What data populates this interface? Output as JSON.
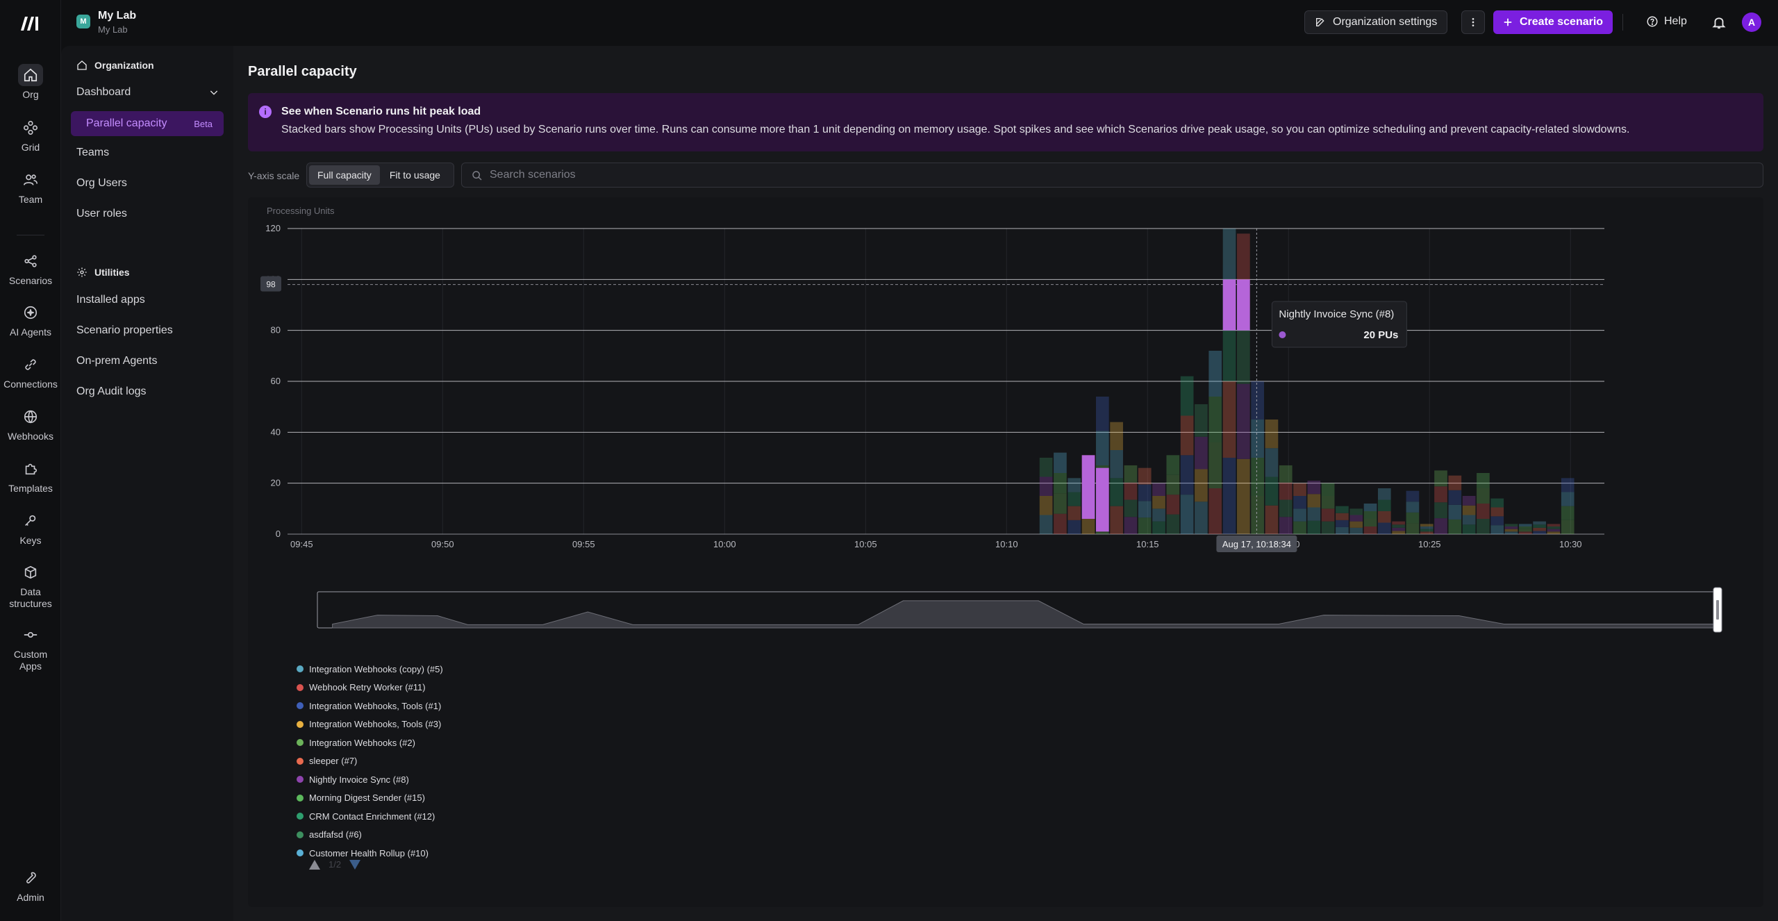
{
  "org": {
    "badge": "M",
    "name": "My Lab",
    "sub": "My Lab"
  },
  "rail": [
    {
      "label": "Org",
      "icon": "home-icon"
    },
    {
      "label": "Grid",
      "icon": "grid-icon"
    },
    {
      "label": "Team",
      "icon": "team-icon"
    },
    {
      "label": "Scenarios",
      "icon": "share-icon"
    },
    {
      "label": "AI Agents",
      "icon": "ai-agent-icon"
    },
    {
      "label": "Connections",
      "icon": "link-icon"
    },
    {
      "label": "Webhooks",
      "icon": "globe-icon"
    },
    {
      "label": "Templates",
      "icon": "puzzle-icon"
    },
    {
      "label": "Keys",
      "icon": "key-icon"
    },
    {
      "label": "Data structures",
      "icon": "cube-icon"
    },
    {
      "label": "Custom Apps",
      "icon": "commit-icon"
    },
    {
      "label": "Admin",
      "icon": "wrench-icon"
    }
  ],
  "topbar": {
    "org_settings": "Organization settings",
    "create": "Create scenario",
    "help": "Help",
    "avatar": "A"
  },
  "sidebar": {
    "organization": "Organization",
    "dashboard": "Dashboard",
    "active_item": "Parallel capacity",
    "active_badge": "Beta",
    "items": [
      "Teams",
      "Org Users",
      "User roles"
    ],
    "utilities": "Utilities",
    "util_items": [
      "Installed apps",
      "Scenario properties",
      "On-prem Agents",
      "Org Audit logs"
    ]
  },
  "main": {
    "title": "Parallel capacity",
    "banner_title": "See when Scenario runs hit peak load",
    "banner_body": "Stacked bars show Processing Units (PUs) used by Scenario runs over time. Runs can consume more than 1 unit depending on memory usage. Spot spikes and see which Scenarios drive peak usage, so you can optimize scheduling and prevent capacity-related slowdowns.",
    "yscale_label": "Y-axis scale",
    "yscale_options": [
      "Full capacity",
      "Fit to usage"
    ],
    "search_placeholder": "Search scenarios"
  },
  "chart_data": {
    "type": "bar",
    "stacked": true,
    "ylabel": "Processing Units",
    "ylim": [
      0,
      120
    ],
    "yticks": [
      0,
      20,
      40,
      60,
      80,
      100,
      120
    ],
    "xticks": [
      "09:45",
      "09:50",
      "09:55",
      "10:00",
      "10:05",
      "10:10",
      "10:15",
      "10:20",
      "10:25",
      "10:30"
    ],
    "capacity_marker": 98,
    "bars": [
      {
        "x": 26.4,
        "v": 30
      },
      {
        "x": 26.9,
        "v": 32
      },
      {
        "x": 27.4,
        "v": 22
      },
      {
        "x": 27.9,
        "v": 31,
        "hl": [
          6,
          31
        ]
      },
      {
        "x": 28.4,
        "v": 54,
        "hl": [
          1,
          26
        ]
      },
      {
        "x": 28.9,
        "v": 44
      },
      {
        "x": 29.4,
        "v": 27
      },
      {
        "x": 29.9,
        "v": 26
      },
      {
        "x": 30.4,
        "v": 20
      },
      {
        "x": 30.9,
        "v": 31
      },
      {
        "x": 31.4,
        "v": 62
      },
      {
        "x": 31.9,
        "v": 51
      },
      {
        "x": 32.4,
        "v": 72
      },
      {
        "x": 32.9,
        "v": 120,
        "hl": [
          80,
          100
        ]
      },
      {
        "x": 33.4,
        "v": 118,
        "hl": [
          80,
          100
        ]
      },
      {
        "x": 33.9,
        "v": 60
      },
      {
        "x": 34.4,
        "v": 45
      },
      {
        "x": 34.9,
        "v": 27
      },
      {
        "x": 35.4,
        "v": 20
      },
      {
        "x": 35.9,
        "v": 21
      },
      {
        "x": 36.4,
        "v": 20
      },
      {
        "x": 36.9,
        "v": 11
      },
      {
        "x": 37.4,
        "v": 10
      },
      {
        "x": 37.9,
        "v": 12
      },
      {
        "x": 38.4,
        "v": 18
      },
      {
        "x": 38.9,
        "v": 5
      },
      {
        "x": 39.4,
        "v": 17
      },
      {
        "x": 39.9,
        "v": 4
      },
      {
        "x": 40.4,
        "v": 25
      },
      {
        "x": 40.9,
        "v": 23
      },
      {
        "x": 41.4,
        "v": 15
      },
      {
        "x": 41.9,
        "v": 24
      },
      {
        "x": 42.4,
        "v": 14
      },
      {
        "x": 42.9,
        "v": 4
      },
      {
        "x": 43.4,
        "v": 4
      },
      {
        "x": 43.9,
        "v": 5
      },
      {
        "x": 44.4,
        "v": 4
      },
      {
        "x": 44.9,
        "v": 22
      }
    ],
    "x_domain": [
      -0.5,
      46.2
    ],
    "cursor_x": 33.87,
    "cursor_label": "Aug 17, 10:18:34",
    "tooltip": {
      "name": "Nightly Invoice Sync (#8)",
      "value": "20 PUs",
      "color": "#9b59d0"
    },
    "overview": [
      [
        0,
        0.12
      ],
      [
        1.5,
        0.4
      ],
      [
        3.5,
        0.38
      ],
      [
        4.5,
        0.1
      ],
      [
        7,
        0.1
      ],
      [
        8.5,
        0.5
      ],
      [
        10,
        0.1
      ],
      [
        17.5,
        0.1
      ],
      [
        19,
        0.85
      ],
      [
        23.5,
        0.85
      ],
      [
        25,
        0.12
      ],
      [
        31.5,
        0.12
      ],
      [
        33,
        0.4
      ],
      [
        37.5,
        0.38
      ],
      [
        39,
        0.12
      ],
      [
        46.2,
        0.12
      ]
    ],
    "legend": [
      {
        "name": "Integration Webhooks (copy) (#5)",
        "color": "#5aa9c2"
      },
      {
        "name": "Webhook Retry Worker (#11)",
        "color": "#d9534f"
      },
      {
        "name": "Integration Webhooks, Tools (#1)",
        "color": "#3f5fb8"
      },
      {
        "name": "Integration Webhooks, Tools (#3)",
        "color": "#e8b040"
      },
      {
        "name": "Integration Webhooks (#2)",
        "color": "#6cb35a"
      },
      {
        "name": "sleeper (#7)",
        "color": "#e86a4f"
      },
      {
        "name": "Nightly Invoice Sync (#8)",
        "color": "#8e44ad"
      },
      {
        "name": "Morning Digest Sender (#15)",
        "color": "#5cb85c"
      },
      {
        "name": "CRM Contact Enrichment (#12)",
        "color": "#2e9e6e"
      },
      {
        "name": "asdfafsd (#6)",
        "color": "#3d8f5f"
      },
      {
        "name": "Customer Health Rollup (#10)",
        "color": "#5ab0d6"
      }
    ],
    "legend_page": "1/2"
  }
}
